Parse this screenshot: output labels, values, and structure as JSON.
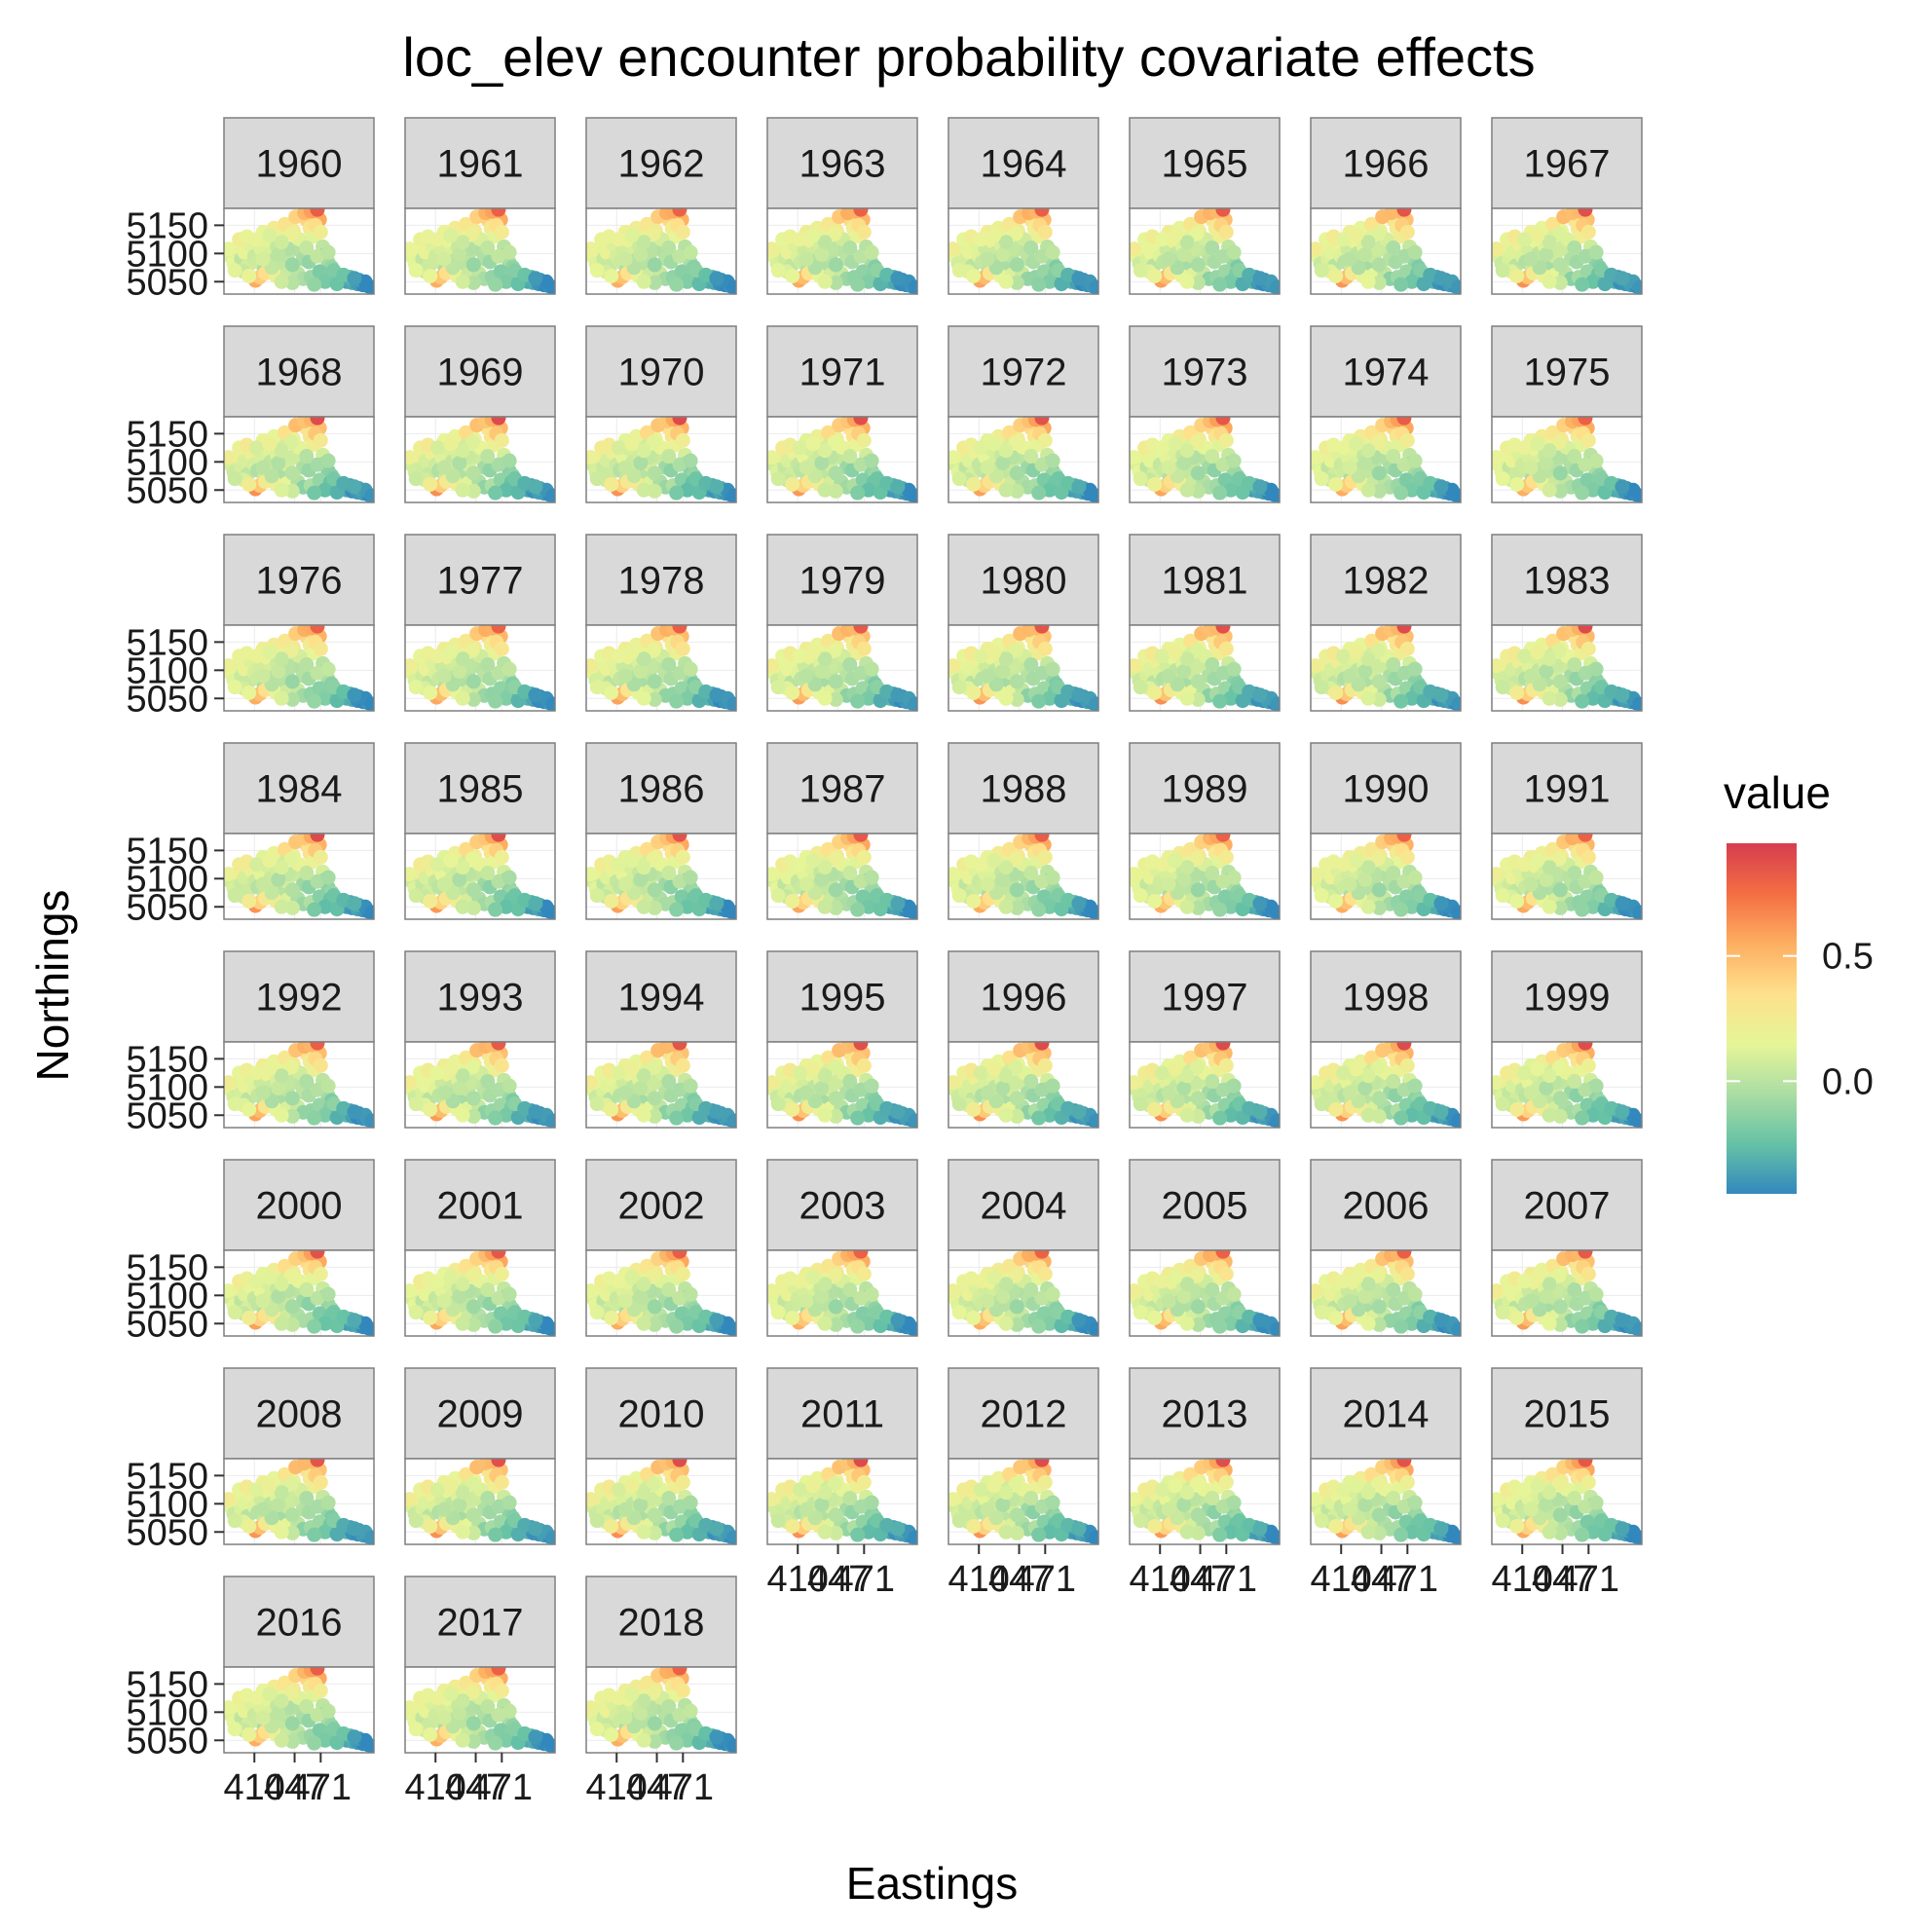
{
  "chart_data": {
    "type": "scatter",
    "title": "loc_elev encounter probability covariate effects",
    "xlabel": "Eastings",
    "ylabel": "Northings",
    "facet_variable": "year",
    "facets": [
      "1960",
      "1961",
      "1962",
      "1963",
      "1964",
      "1965",
      "1966",
      "1967",
      "1968",
      "1969",
      "1970",
      "1971",
      "1972",
      "1973",
      "1974",
      "1975",
      "1976",
      "1977",
      "1978",
      "1979",
      "1980",
      "1981",
      "1982",
      "1983",
      "1984",
      "1985",
      "1986",
      "1987",
      "1988",
      "1989",
      "1990",
      "1991",
      "1992",
      "1993",
      "1994",
      "1995",
      "1996",
      "1997",
      "1998",
      "1999",
      "2000",
      "2001",
      "2002",
      "2003",
      "2004",
      "2005",
      "2006",
      "2007",
      "2008",
      "2009",
      "2010",
      "2011",
      "2012",
      "2013",
      "2014",
      "2015",
      "2016",
      "2017",
      "2018"
    ],
    "y_ticks": [
      {
        "value": 5050,
        "label": "5050"
      },
      {
        "value": 5100,
        "label": "5100"
      },
      {
        "value": 5150,
        "label": "5150"
      }
    ],
    "x_ticks": [
      {
        "value": 410,
        "label": "410"
      },
      {
        "value": 447,
        "label": "447"
      },
      {
        "value": 471,
        "label": "471"
      }
    ],
    "xlim": [
      382,
      520
    ],
    "ylim": [
      5028,
      5180
    ],
    "grid": true,
    "legend": {
      "title": "value",
      "position": "right",
      "colors": [
        "#3288bd",
        "#66c2a5",
        "#abdda4",
        "#e6f598",
        "#fee08b",
        "#fdae61",
        "#f46d43",
        "#d53e4f"
      ],
      "min": -0.45,
      "max": 0.95,
      "ticks": [
        {
          "value": 0.0,
          "label": "0.0"
        },
        {
          "value": 0.5,
          "label": "0.5"
        }
      ]
    },
    "points": [
      [
        388,
        5095,
        0.12
      ],
      [
        391,
        5082,
        0.1
      ],
      [
        395,
        5110,
        0.18
      ],
      [
        398,
        5090,
        0.06
      ],
      [
        401,
        5102,
        0.14
      ],
      [
        404,
        5078,
        0.04
      ],
      [
        407,
        5115,
        0.16
      ],
      [
        410,
        5095,
        0.08
      ],
      [
        413,
        5085,
        0.02
      ],
      [
        416,
        5108,
        0.1
      ],
      [
        419,
        5072,
        0.0
      ],
      [
        422,
        5122,
        0.14
      ],
      [
        425,
        5100,
        0.06
      ],
      [
        428,
        5088,
        0.02
      ],
      [
        431,
        5112,
        0.08
      ],
      [
        434,
        5132,
        0.12
      ],
      [
        437,
        5078,
        -0.02
      ],
      [
        440,
        5095,
        0.04
      ],
      [
        443,
        5150,
        0.3
      ],
      [
        446,
        5140,
        0.22
      ],
      [
        449,
        5120,
        0.1
      ],
      [
        452,
        5105,
        0.02
      ],
      [
        455,
        5090,
        -0.04
      ],
      [
        458,
        5160,
        0.35
      ],
      [
        461,
        5145,
        0.28
      ],
      [
        464,
        5130,
        0.18
      ],
      [
        467,
        5172,
        0.7
      ],
      [
        470,
        5160,
        0.52
      ],
      [
        473,
        5112,
        0.04
      ],
      [
        475,
        5098,
        -0.06
      ],
      [
        478,
        5084,
        -0.1
      ],
      [
        481,
        5076,
        -0.14
      ],
      [
        411,
        5052,
        0.6
      ],
      [
        415,
        5058,
        0.45
      ],
      [
        420,
        5065,
        0.3
      ],
      [
        430,
        5060,
        0.2
      ],
      [
        440,
        5062,
        0.1
      ],
      [
        450,
        5065,
        0.0
      ],
      [
        455,
        5055,
        -0.1
      ],
      [
        462,
        5058,
        -0.08
      ],
      [
        470,
        5068,
        -0.14
      ],
      [
        480,
        5064,
        -0.2
      ],
      [
        485,
        5058,
        -0.26
      ],
      [
        490,
        5054,
        -0.3
      ],
      [
        495,
        5050,
        -0.34
      ],
      [
        500,
        5048,
        -0.38
      ],
      [
        505,
        5046,
        -0.4
      ],
      [
        510,
        5044,
        -0.42
      ],
      [
        515,
        5042,
        -0.44
      ],
      [
        498,
        5058,
        -0.34
      ],
      [
        506,
        5053,
        -0.38
      ],
      [
        512,
        5050,
        -0.42
      ],
      [
        475,
        5050,
        -0.22
      ],
      [
        486,
        5046,
        -0.28
      ],
      [
        445,
        5048,
        0.02
      ],
      [
        435,
        5050,
        0.1
      ],
      [
        465,
        5045,
        -0.16
      ],
      [
        396,
        5125,
        0.2
      ],
      [
        403,
        5130,
        0.22
      ],
      [
        418,
        5138,
        0.18
      ],
      [
        428,
        5145,
        0.2
      ],
      [
        438,
        5152,
        0.32
      ],
      [
        448,
        5165,
        0.45
      ],
      [
        456,
        5172,
        0.5
      ],
      [
        462,
        5175,
        0.55
      ],
      [
        468,
        5178,
        0.85
      ],
      [
        400,
        5068,
        0.08
      ],
      [
        392,
        5070,
        0.1
      ],
      [
        426,
        5075,
        0.0
      ],
      [
        445,
        5080,
        -0.06
      ],
      [
        460,
        5085,
        -0.1
      ],
      [
        468,
        5095,
        -0.02
      ],
      [
        452,
        5125,
        0.12
      ],
      [
        441,
        5108,
        0.02
      ],
      [
        432,
        5098,
        0.0
      ],
      [
        418,
        5090,
        0.04
      ],
      [
        405,
        5060,
        0.2
      ],
      [
        386,
        5108,
        0.2
      ],
      [
        412,
        5125,
        0.14
      ],
      [
        458,
        5110,
        0.0
      ],
      [
        466,
        5150,
        0.4
      ],
      [
        471,
        5138,
        0.26
      ],
      [
        444,
        5135,
        0.16
      ],
      [
        435,
        5120,
        0.06
      ],
      [
        424,
        5132,
        0.16
      ],
      [
        483,
        5070,
        -0.18
      ],
      [
        492,
        5062,
        -0.28
      ],
      [
        502,
        5056,
        -0.36
      ],
      [
        518,
        5040,
        -0.45
      ],
      [
        478,
        5102,
        -0.02
      ]
    ]
  }
}
